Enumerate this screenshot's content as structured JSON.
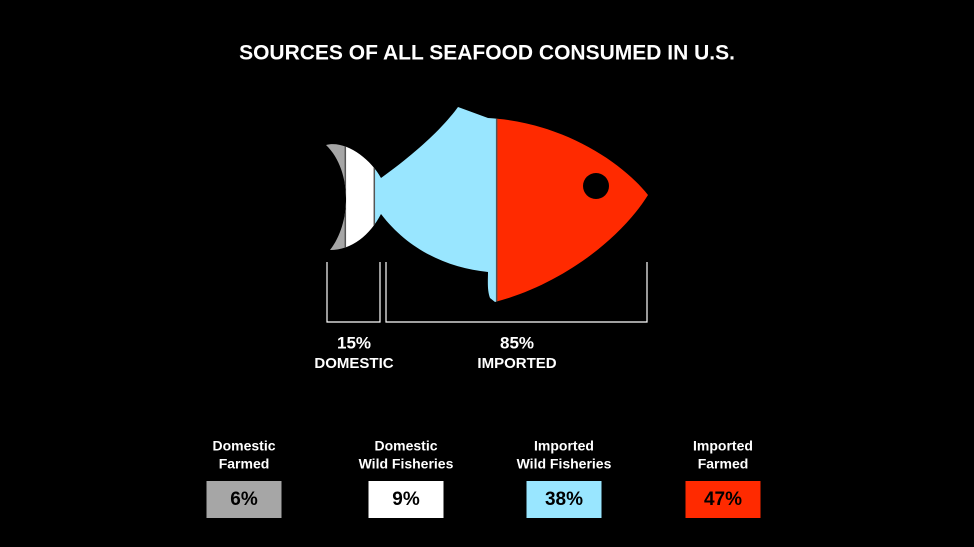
{
  "title": "SOURCES OF ALL SEAFOOD CONSUMED IN U.S.",
  "groups": [
    {
      "value": 15,
      "value_label": "15%",
      "label": "DOMESTIC"
    },
    {
      "value": 85,
      "value_label": "85%",
      "label": "IMPORTED"
    }
  ],
  "items": [
    {
      "label": [
        "Domestic",
        "Farmed"
      ],
      "value": 6,
      "value_label": "6%",
      "color": "#a6a6a6"
    },
    {
      "label": [
        "Domestic",
        "Wild Fisheries"
      ],
      "value": 9,
      "value_label": "9%",
      "color": "#ffffff"
    },
    {
      "label": [
        "Imported",
        "Wild Fisheries"
      ],
      "value": 38,
      "value_label": "38%",
      "color": "#99e6ff"
    },
    {
      "label": [
        "Imported",
        "Farmed"
      ],
      "value": 47,
      "value_label": "47%",
      "color": "#ff2a00"
    }
  ]
}
